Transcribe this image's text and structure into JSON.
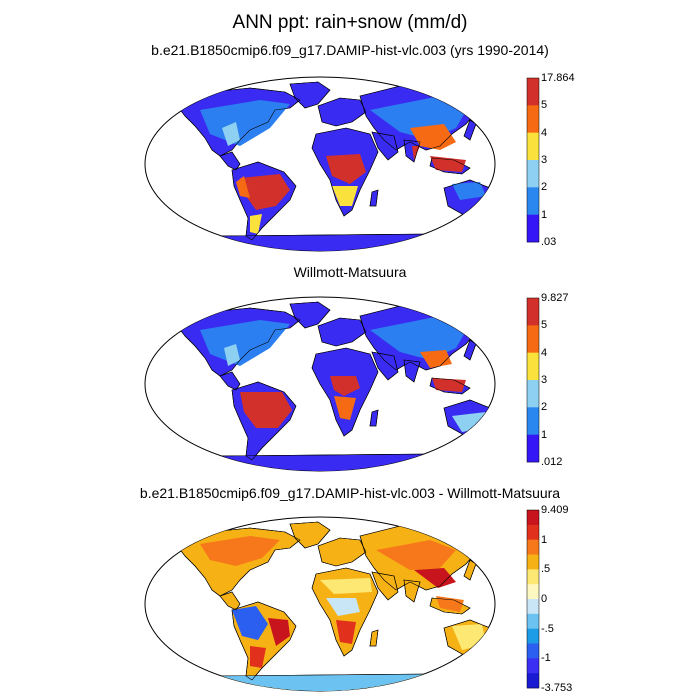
{
  "main_title": "ANN ppt: rain+snow (mm/d)",
  "panels": [
    {
      "title": "b.e21.B1850cmip6.f09_g17.DAMIP-hist-vlc.003 (yrs 1990-2014)",
      "colorbar": {
        "labels": [
          "17.864",
          "5",
          "4",
          "3",
          "2",
          "1",
          ".03"
        ],
        "colors": [
          "#d2302a",
          "#f56a12",
          "#fbe13b",
          "#8ed0f2",
          "#2b87f0",
          "#3516f7"
        ]
      }
    },
    {
      "title": "Willmott-Matsuura",
      "colorbar": {
        "labels": [
          "9.827",
          "5",
          "4",
          "3",
          "2",
          "1",
          ".012"
        ],
        "colors": [
          "#d2302a",
          "#f56a12",
          "#fbe13b",
          "#8ed0f2",
          "#2b87f0",
          "#3516f7"
        ]
      }
    },
    {
      "title": "b.e21.B1850cmip6.f09_g17.DAMIP-hist-vlc.003 - Willmott-Matsuura",
      "colorbar": {
        "labels": [
          "9.409",
          "1",
          ".5",
          "0",
          "-.5",
          "-1",
          "-3.753"
        ],
        "colors": [
          "#c8141c",
          "#e1311d",
          "#f7781b",
          "#f6b114",
          "#fde873",
          "#fff7c0",
          "#c8e6f6",
          "#6cc3f1",
          "#1c9be6",
          "#2b5ff0",
          "#3a2ff2",
          "#1a1ad2"
        ]
      }
    }
  ]
}
